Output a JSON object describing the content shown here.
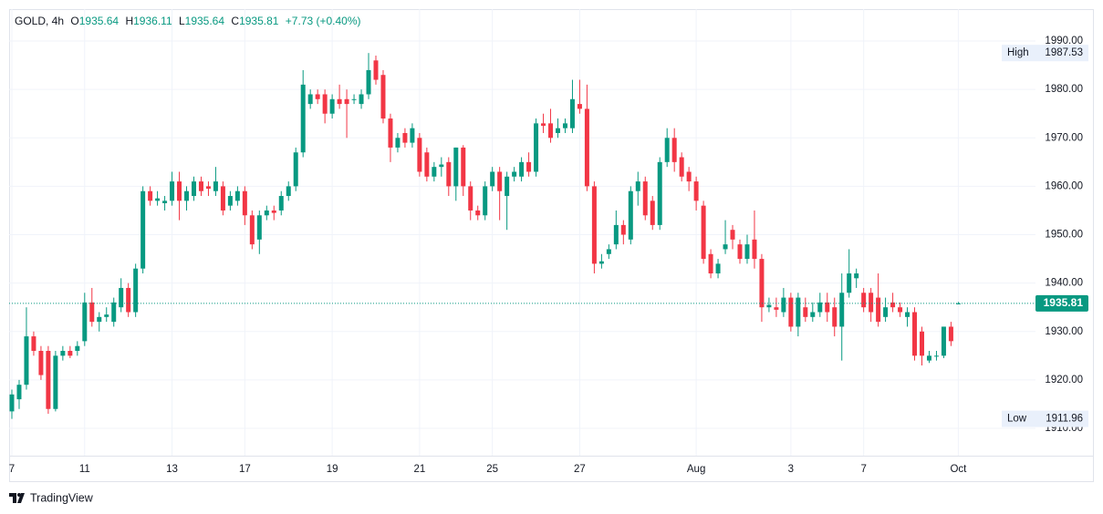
{
  "chart_data": {
    "type": "candlestick",
    "header": {
      "symbol": "GOLD, 4h",
      "labels": [
        "O",
        "H",
        "L",
        "C"
      ],
      "change": "+7.73 (+0.40%)"
    },
    "categories": [
      "7",
      null,
      null,
      null,
      null,
      null,
      null,
      null,
      null,
      null,
      "11",
      null,
      null,
      null,
      null,
      null,
      null,
      null,
      null,
      null,
      null,
      null,
      "13",
      null,
      null,
      null,
      null,
      null,
      null,
      null,
      null,
      null,
      "17",
      null,
      null,
      null,
      null,
      null,
      null,
      null,
      null,
      null,
      null,
      null,
      "19",
      null,
      null,
      null,
      null,
      null,
      null,
      null,
      null,
      null,
      null,
      null,
      "21",
      null,
      null,
      null,
      null,
      null,
      null,
      null,
      null,
      null,
      "25",
      null,
      null,
      null,
      null,
      null,
      null,
      null,
      null,
      null,
      null,
      null,
      "27",
      null,
      null,
      null,
      null,
      null,
      null,
      null,
      null,
      null,
      null,
      null,
      null,
      null,
      null,
      null,
      "Aug",
      null,
      null,
      null,
      null,
      null,
      null,
      null,
      null,
      null,
      null,
      null,
      null,
      "3",
      null,
      null,
      null,
      null,
      null,
      null,
      null,
      null,
      null,
      "7",
      null,
      null,
      null,
      null,
      null,
      null,
      null,
      null,
      null,
      null,
      null,
      null,
      "Oct"
    ],
    "open": [
      1913.5,
      1916,
      1919,
      1929,
      1926,
      1926,
      1914,
      1925,
      1926,
      1926,
      1928,
      1936,
      1932,
      1933,
      1932,
      1935,
      1939,
      1934,
      1943,
      1959,
      1957,
      1956.5,
      1957,
      1961,
      1957,
      1958,
      1961,
      1960,
      1959,
      1960,
      1956,
      1957,
      1959,
      1954,
      1949,
      1954,
      1955,
      1955,
      1958,
      1960,
      1967,
      1977,
      1979,
      1979,
      1975,
      1978,
      1978,
      1978,
      1977,
      1979,
      1986,
      1983,
      1974,
      1968,
      1971,
      1969,
      1970,
      1967,
      1962,
      1964,
      1965,
      1960,
      1968,
      1960,
      1955,
      1954,
      1960,
      1963,
      1958,
      1962,
      1962,
      1965,
      1963,
      1973,
      1973,
      1971,
      1972,
      1972,
      1977,
      1976,
      1960,
      1944,
      1946,
      1948,
      1952,
      1949,
      1959,
      1961,
      1957,
      1952,
      1965,
      1970,
      1966,
      1963,
      1961,
      1956,
      1946,
      1942,
      1947,
      1951,
      1948,
      1945,
      1949,
      1945,
      1935,
      1935,
      1934,
      1937,
      1931,
      1935,
      1933,
      1934,
      1936,
      1935,
      1931,
      1938,
      1941,
      1938,
      1938,
      1937,
      1933,
      1936,
      1935,
      1933,
      1934,
      1930,
      1924,
      1925,
      1925,
      1931,
      1935.64
    ],
    "high": [
      1918,
      1920,
      1935,
      1930,
      1927,
      1927,
      1926,
      1927,
      1927,
      1928,
      1938,
      1939,
      1934,
      1935,
      1937,
      1941,
      1940,
      1944,
      1960,
      1960,
      1959,
      1958,
      1963,
      1963,
      1960,
      1962,
      1962,
      1961,
      1964,
      1961,
      1959,
      1960,
      1960,
      1955,
      1955,
      1956,
      1956,
      1959,
      1961,
      1968,
      1984,
      1980,
      1980,
      1980,
      1979,
      1981,
      1980,
      1979,
      1980,
      1987.53,
      1987,
      1984,
      1975,
      1971,
      1972,
      1973,
      1971,
      1968,
      1965,
      1966,
      1966,
      1968,
      1968.5,
      1961,
      1956,
      1961,
      1964,
      1964,
      1963,
      1964,
      1966,
      1967,
      1974,
      1975,
      1976,
      1974,
      1974,
      1982,
      1982,
      1981,
      1961,
      1946,
      1948,
      1955,
      1953,
      1960,
      1963,
      1962,
      1958,
      1966,
      1972,
      1972,
      1967,
      1964,
      1962,
      1957,
      1947,
      1945,
      1953,
      1952,
      1949,
      1950,
      1955,
      1946,
      1937,
      1937,
      1939,
      1938,
      1938,
      1937,
      1936,
      1938,
      1938,
      1937,
      1942,
      1947,
      1943,
      1939,
      1939,
      1942,
      1937,
      1938,
      1936,
      1935,
      1935,
      1931,
      1926,
      1926,
      1931,
      1932,
      1936.11
    ],
    "low": [
      1911.96,
      1914,
      1918,
      1925,
      1920,
      1913,
      1913.5,
      1924,
      1924.5,
      1925,
      1927,
      1931,
      1930,
      1932,
      1931,
      1934,
      1933,
      1933,
      1942,
      1956,
      1956,
      1955,
      1956,
      1953,
      1955,
      1957,
      1958,
      1958,
      1958,
      1954,
      1955,
      1956,
      1952,
      1947,
      1946,
      1953,
      1953,
      1954,
      1957,
      1959,
      1966,
      1976,
      1977,
      1973,
      1974,
      1976,
      1970,
      1977,
      1976,
      1978,
      1981,
      1973,
      1965,
      1967,
      1968,
      1968,
      1962,
      1961,
      1961,
      1962,
      1958,
      1957,
      1958,
      1953,
      1953,
      1953,
      1959,
      1953,
      1951,
      1961,
      1961,
      1962,
      1962,
      1971,
      1969,
      1970,
      1971,
      1971,
      1975,
      1959,
      1942,
      1943,
      1945,
      1947,
      1948,
      1948,
      1956,
      1953,
      1951,
      1951,
      1964,
      1963,
      1961,
      1959,
      1955,
      1944,
      1941,
      1941,
      1946,
      1947,
      1944,
      1944,
      1943,
      1932,
      1934,
      1933,
      1933,
      1930,
      1929,
      1932,
      1932,
      1933,
      1932,
      1929,
      1924,
      1937,
      1939,
      1934,
      1932,
      1931,
      1932,
      1934,
      1933,
      1931,
      1924,
      1923,
      1923.5,
      1924,
      1924.5,
      1927,
      1935.64
    ],
    "close": [
      1917,
      1919,
      1929,
      1926,
      1921,
      1914,
      1925,
      1926,
      1925,
      1927,
      1936,
      1932,
      1933,
      1933.5,
      1936,
      1939,
      1934,
      1943,
      1959,
      1957,
      1957.5,
      1957,
      1961,
      1957,
      1959,
      1961,
      1959,
      1959.5,
      1961,
      1955,
      1958,
      1959,
      1954,
      1948,
      1954,
      1955,
      1954.5,
      1958,
      1960,
      1967,
      1981,
      1979,
      1978,
      1975,
      1978,
      1977,
      1977,
      1978,
      1979,
      1984,
      1982,
      1974,
      1968,
      1970,
      1969,
      1972,
      1963,
      1962,
      1964,
      1964.5,
      1960,
      1968,
      1960,
      1955,
      1954,
      1960,
      1963,
      1959,
      1962,
      1963,
      1965,
      1963,
      1973,
      1972.5,
      1970,
      1972,
      1973,
      1978,
      1976,
      1960,
      1944,
      1944.5,
      1947,
      1952,
      1950,
      1959,
      1961,
      1954,
      1952,
      1965,
      1970,
      1965,
      1962,
      1961,
      1957,
      1945,
      1942,
      1944,
      1948,
      1949,
      1945,
      1948,
      1945,
      1935,
      1935.5,
      1934.5,
      1937,
      1931,
      1937,
      1933,
      1934,
      1936,
      1934,
      1931,
      1938,
      1942,
      1942,
      1935,
      1934,
      1932,
      1935,
      1935,
      1934,
      1934,
      1925,
      1925,
      1925,
      1925,
      1931,
      1928,
      1935.81
    ],
    "up_color": "#089981",
    "down_color": "#f23645",
    "ylim": [
      1904.35,
      1996.6
    ],
    "yticks": [
      {
        "value": 1910,
        "label": "1910.00"
      },
      {
        "value": 1920,
        "label": "1920.00"
      },
      {
        "value": 1930,
        "label": "1930.00"
      },
      {
        "value": 1940,
        "label": "1940.00"
      },
      {
        "value": 1950,
        "label": "1950.00"
      },
      {
        "value": 1960,
        "label": "1960.00"
      },
      {
        "value": 1970,
        "label": "1970.00"
      },
      {
        "value": 1980,
        "label": "1980.00"
      },
      {
        "value": 1990,
        "label": "1990.00"
      }
    ],
    "high_marker": {
      "label": "High",
      "value": 1987.53
    },
    "low_marker": {
      "label": "Low",
      "value": 1911.96
    },
    "grid": true,
    "brand": "TradingView"
  }
}
